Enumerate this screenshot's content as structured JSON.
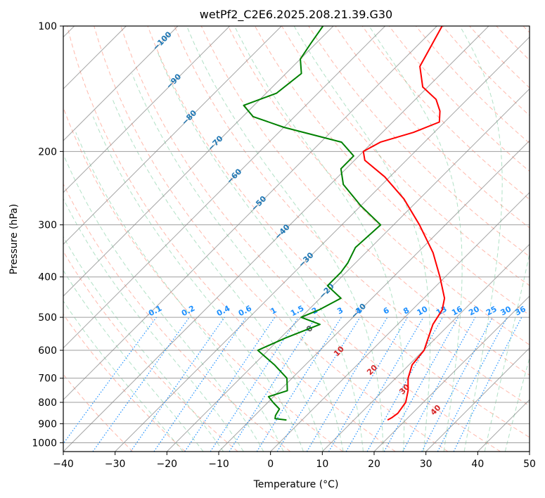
{
  "chart_data": {
    "type": "line",
    "subtype": "skew-t log-p diagram",
    "title": "wetPf2_C2E6.2025.208.21.39.G30",
    "xlabel": "Temperature (°C)",
    "ylabel": "Pressure (hPa)",
    "xlim": [
      -40,
      50
    ],
    "ylim": [
      1050,
      100
    ],
    "y_scale": "log",
    "x_ticks": [
      "−40",
      "−30",
      "−20",
      "−10",
      "0",
      "10",
      "20",
      "30",
      "40",
      "50"
    ],
    "y_ticks": [
      "1000",
      "900",
      "800",
      "700",
      "600",
      "500",
      "400",
      "300",
      "200",
      "100"
    ],
    "grid": true,
    "legend": "none",
    "colors": {
      "temperature": "#ff0000",
      "dewpoint": "#008000",
      "isotherm": "#808080",
      "dry_adiabat": "#ff6347",
      "moist_adiabat": "#3cb371",
      "mixing_ratio": "#1e90ff",
      "theta_label": "#1f77b4",
      "theta_e_label": "#d62728"
    },
    "series": [
      {
        "name": "temperature",
        "points": [
          {
            "p": 882,
            "t": 16.5
          },
          {
            "p": 870,
            "t": 16.9
          },
          {
            "p": 850,
            "t": 17.2
          },
          {
            "p": 800,
            "t": 16.6
          },
          {
            "p": 750,
            "t": 14.8
          },
          {
            "p": 700,
            "t": 12.4
          },
          {
            "p": 650,
            "t": 10.6
          },
          {
            "p": 600,
            "t": 10.1
          },
          {
            "p": 560,
            "t": 8.5
          },
          {
            "p": 520,
            "t": 6.8
          },
          {
            "p": 480,
            "t": 5.8
          },
          {
            "p": 450,
            "t": 4.0
          },
          {
            "p": 400,
            "t": -1.0
          },
          {
            "p": 350,
            "t": -7.0
          },
          {
            "p": 300,
            "t": -15.0
          },
          {
            "p": 260,
            "t": -23.0
          },
          {
            "p": 230,
            "t": -31.0
          },
          {
            "p": 210,
            "t": -38.0
          },
          {
            "p": 200,
            "t": -40.0
          },
          {
            "p": 190,
            "t": -38.5
          },
          {
            "p": 180,
            "t": -34.0
          },
          {
            "p": 170,
            "t": -31.0
          },
          {
            "p": 160,
            "t": -33.0
          },
          {
            "p": 150,
            "t": -36.0
          },
          {
            "p": 140,
            "t": -41.0
          },
          {
            "p": 125,
            "t": -45.5
          },
          {
            "p": 110,
            "t": -47.5
          },
          {
            "p": 100,
            "t": -49.0
          }
        ]
      },
      {
        "name": "dewpoint",
        "points": [
          {
            "p": 882,
            "t": -3.0
          },
          {
            "p": 875,
            "t": -5.5
          },
          {
            "p": 860,
            "t": -6.0
          },
          {
            "p": 830,
            "t": -6.5
          },
          {
            "p": 800,
            "t": -9.0
          },
          {
            "p": 775,
            "t": -11.0
          },
          {
            "p": 750,
            "t": -8.5
          },
          {
            "p": 700,
            "t": -11.0
          },
          {
            "p": 650,
            "t": -16.0
          },
          {
            "p": 600,
            "t": -22.0
          },
          {
            "p": 560,
            "t": -19.0
          },
          {
            "p": 520,
            "t": -15.0
          },
          {
            "p": 500,
            "t": -20.0
          },
          {
            "p": 480,
            "t": -18.0
          },
          {
            "p": 450,
            "t": -16.0
          },
          {
            "p": 420,
            "t": -21.0
          },
          {
            "p": 390,
            "t": -21.0
          },
          {
            "p": 370,
            "t": -21.5
          },
          {
            "p": 340,
            "t": -23.0
          },
          {
            "p": 300,
            "t": -22.5
          },
          {
            "p": 270,
            "t": -30.0
          },
          {
            "p": 240,
            "t": -37.5
          },
          {
            "p": 220,
            "t": -41.0
          },
          {
            "p": 205,
            "t": -41.0
          },
          {
            "p": 190,
            "t": -46.0
          },
          {
            "p": 175,
            "t": -60.0
          },
          {
            "p": 165,
            "t": -68.0
          },
          {
            "p": 155,
            "t": -72.0
          },
          {
            "p": 145,
            "t": -68.0
          },
          {
            "p": 130,
            "t": -67.0
          },
          {
            "p": 120,
            "t": -70.0
          },
          {
            "p": 110,
            "t": -71.0
          },
          {
            "p": 100,
            "t": -72.0
          }
        ]
      }
    ],
    "isotherm_labels": [
      "−100",
      "−90",
      "−80",
      "−70",
      "−60",
      "−50",
      "−40",
      "−30",
      "−20",
      "−10"
    ],
    "mixing_ratio_labels": [
      "0.1",
      "0.2",
      "0.4",
      "0.6",
      "1",
      "1.5",
      "2",
      "3",
      "4",
      "6",
      "8",
      "10",
      "13",
      "16",
      "20",
      "25",
      "30",
      "36"
    ],
    "mixing_ratio_values": [
      0.1,
      0.2,
      0.4,
      0.6,
      1,
      1.5,
      2,
      3,
      4,
      6,
      8,
      10,
      13,
      16,
      20,
      25,
      30,
      36
    ],
    "theta_e_labels": [
      "0",
      "10",
      "20",
      "30",
      "40"
    ],
    "theta_e_values": [
      0,
      10,
      20,
      30,
      40
    ]
  }
}
